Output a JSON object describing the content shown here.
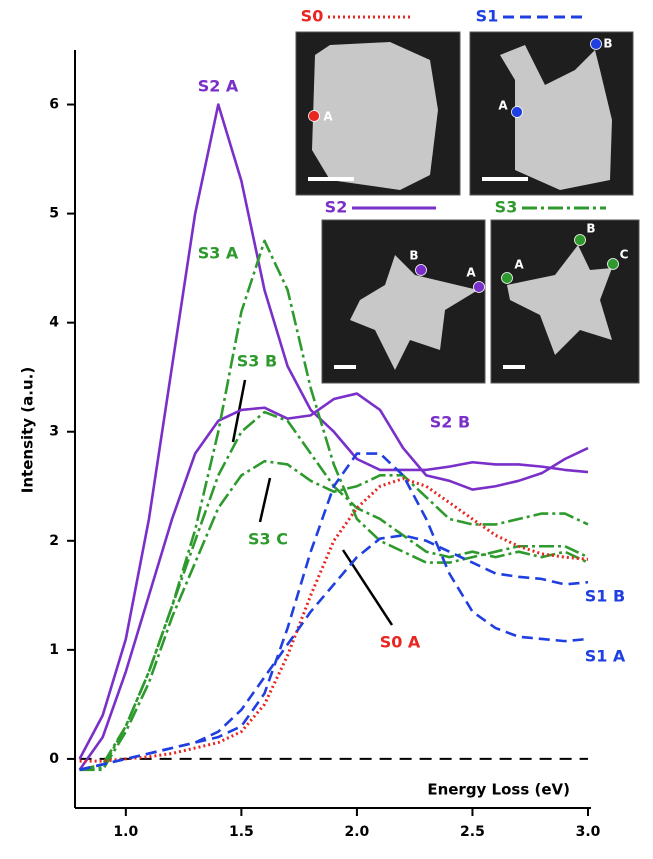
{
  "chart_data": {
    "type": "line",
    "y_label": "Intensity (a.u.)",
    "x_label": "Energy Loss (eV)",
    "x": [
      0.8,
      0.9,
      1.0,
      1.1,
      1.2,
      1.3,
      1.4,
      1.5,
      1.6,
      1.7,
      1.8,
      1.9,
      2.0,
      2.1,
      2.2,
      2.3,
      2.4,
      2.5,
      2.6,
      2.7,
      2.8,
      2.9,
      3.0
    ],
    "xlim": [
      0.78,
      3.0
    ],
    "ylim": [
      -0.45,
      6.5
    ],
    "xticks": [
      {
        "value": 1,
        "label": "1.0"
      },
      {
        "value": 1.5,
        "label": "1.5"
      },
      {
        "value": 2,
        "label": "2.0"
      },
      {
        "value": 2.5,
        "label": "2.5"
      },
      {
        "value": 3,
        "label": "3.0"
      }
    ],
    "yticks": [
      0,
      1,
      2,
      3,
      4,
      5,
      6
    ],
    "hline": 0,
    "series": [
      {
        "name": "S2 A",
        "color": "#7a2fc8",
        "dash": "solid",
        "values": [
          0,
          0.4,
          1.1,
          2.2,
          3.6,
          5.0,
          6.0,
          5.3,
          4.3,
          3.6,
          3.2,
          3.0,
          2.75,
          2.65,
          2.65,
          2.65,
          2.68,
          2.72,
          2.7,
          2.7,
          2.68,
          2.65,
          2.63
        ]
      },
      {
        "name": "S2 B",
        "color": "#7a2fc8",
        "dash": "solid",
        "values": [
          -0.1,
          0.2,
          0.8,
          1.5,
          2.2,
          2.8,
          3.1,
          3.2,
          3.22,
          3.12,
          3.15,
          3.3,
          3.35,
          3.2,
          2.85,
          2.6,
          2.55,
          2.47,
          2.5,
          2.55,
          2.62,
          2.75,
          2.85
        ]
      },
      {
        "name": "S3 A",
        "color": "#2e9a2e",
        "dash": "dashdot",
        "values": [
          -0.1,
          -0.05,
          0.3,
          0.8,
          1.4,
          2.1,
          3.0,
          4.1,
          4.75,
          4.3,
          3.4,
          2.7,
          2.2,
          2.0,
          1.9,
          1.8,
          1.8,
          1.85,
          1.9,
          1.95,
          1.95,
          1.95,
          1.85
        ]
      },
      {
        "name": "S3 B",
        "color": "#2e9a2e",
        "dash": "dashdot",
        "values": [
          -0.1,
          -0.08,
          0.3,
          0.8,
          1.4,
          2.0,
          2.6,
          3.0,
          3.18,
          3.1,
          2.8,
          2.5,
          2.3,
          2.2,
          2.05,
          1.9,
          1.85,
          1.9,
          1.85,
          1.9,
          1.85,
          1.9,
          1.8
        ]
      },
      {
        "name": "S3 C",
        "color": "#2e9a2e",
        "dash": "dashdot",
        "values": [
          -0.1,
          -0.1,
          0.25,
          0.7,
          1.3,
          1.8,
          2.3,
          2.6,
          2.73,
          2.7,
          2.55,
          2.45,
          2.5,
          2.6,
          2.6,
          2.4,
          2.2,
          2.15,
          2.15,
          2.2,
          2.25,
          2.25,
          2.15
        ]
      },
      {
        "name": "S0 A",
        "color": "#e8251f",
        "dash": "dotted",
        "values": [
          -0.02,
          -0.02,
          0,
          0.02,
          0.05,
          0.1,
          0.15,
          0.25,
          0.5,
          0.95,
          1.5,
          2.0,
          2.3,
          2.5,
          2.57,
          2.5,
          2.35,
          2.2,
          2.05,
          1.95,
          1.88,
          1.85,
          1.83
        ]
      },
      {
        "name": "S1 A",
        "color": "#1f3fe0",
        "dash": "dashed",
        "values": [
          -0.1,
          -0.05,
          0,
          0.05,
          0.1,
          0.15,
          0.2,
          0.3,
          0.6,
          1.2,
          1.9,
          2.5,
          2.8,
          2.8,
          2.6,
          2.2,
          1.7,
          1.35,
          1.2,
          1.12,
          1.1,
          1.08,
          1.1
        ]
      },
      {
        "name": "S1 B",
        "color": "#1f3fe0",
        "dash": "dashed",
        "values": [
          -0.1,
          -0.05,
          0,
          0.05,
          0.1,
          0.15,
          0.25,
          0.45,
          0.75,
          1.05,
          1.35,
          1.6,
          1.85,
          2.02,
          2.05,
          2.0,
          1.9,
          1.8,
          1.7,
          1.67,
          1.65,
          1.6,
          1.62
        ]
      }
    ],
    "insets": [
      {
        "name": "S0",
        "color": "#e8251f",
        "dash": "dotted",
        "points": [
          "A"
        ]
      },
      {
        "name": "S1",
        "color": "#1f3fe0",
        "dash": "dashed",
        "points": [
          "A",
          "B"
        ]
      },
      {
        "name": "S2",
        "color": "#7a2fc8",
        "dash": "solid",
        "points": [
          "B",
          "A"
        ]
      },
      {
        "name": "S3",
        "color": "#2e9a2e",
        "dash": "dashdot",
        "points": [
          "A",
          "B",
          "C"
        ]
      }
    ]
  }
}
